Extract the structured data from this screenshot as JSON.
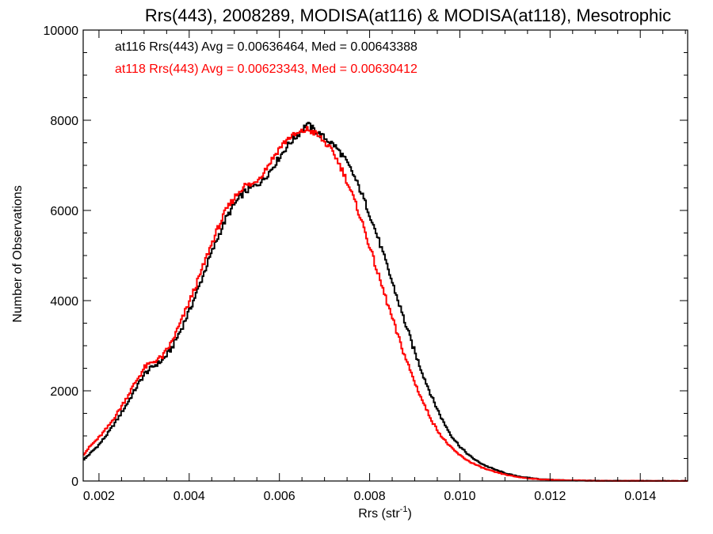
{
  "chart_data": {
    "type": "line",
    "step": true,
    "title": "Rrs(443), 2008289, MODISA(at116) & MODISA(at118), Mesotrophic",
    "xlabel_main": "Rrs (str",
    "xlabel_sup": "-1",
    "xlabel_close": ")",
    "ylabel": "Number of Observations",
    "xlim": [
      0.00165,
      0.01505
    ],
    "ylim": [
      0,
      10000
    ],
    "xticks": [
      "0.002",
      "0.004",
      "0.006",
      "0.008",
      "0.010",
      "0.012",
      "0.014"
    ],
    "xtick_values": [
      0.002,
      0.004,
      0.006,
      0.008,
      0.01,
      0.012,
      0.014
    ],
    "yticks": [
      "0",
      "2000",
      "4000",
      "6000",
      "8000",
      "10000"
    ],
    "ytick_values": [
      0,
      2000,
      4000,
      6000,
      8000,
      10000
    ],
    "series": [
      {
        "name": "at116",
        "color": "#000000",
        "legend": "at116 Rrs(443) Avg = 0.00636464, Med = 0.00643388",
        "points": [
          [
            0.00165,
            480
          ],
          [
            0.0018,
            620
          ],
          [
            0.002,
            820
          ],
          [
            0.0022,
            1080
          ],
          [
            0.0024,
            1380
          ],
          [
            0.0026,
            1700
          ],
          [
            0.0028,
            2050
          ],
          [
            0.003,
            2380
          ],
          [
            0.0032,
            2550
          ],
          [
            0.0034,
            2680
          ],
          [
            0.0036,
            2950
          ],
          [
            0.0038,
            3350
          ],
          [
            0.004,
            3800
          ],
          [
            0.0042,
            4300
          ],
          [
            0.0044,
            4850
          ],
          [
            0.0046,
            5350
          ],
          [
            0.0048,
            5820
          ],
          [
            0.005,
            6150
          ],
          [
            0.0052,
            6400
          ],
          [
            0.0054,
            6520
          ],
          [
            0.0056,
            6650
          ],
          [
            0.0058,
            6900
          ],
          [
            0.006,
            7200
          ],
          [
            0.0062,
            7480
          ],
          [
            0.0064,
            7680
          ],
          [
            0.0066,
            7920
          ],
          [
            0.0068,
            7750
          ],
          [
            0.007,
            7600
          ],
          [
            0.0072,
            7450
          ],
          [
            0.0074,
            7200
          ],
          [
            0.0076,
            6850
          ],
          [
            0.0078,
            6400
          ],
          [
            0.008,
            5880
          ],
          [
            0.0082,
            5300
          ],
          [
            0.0084,
            4680
          ],
          [
            0.0086,
            4050
          ],
          [
            0.0088,
            3420
          ],
          [
            0.009,
            2820
          ],
          [
            0.0092,
            2280
          ],
          [
            0.0094,
            1780
          ],
          [
            0.0096,
            1350
          ],
          [
            0.0098,
            1000
          ],
          [
            0.01,
            750
          ],
          [
            0.0102,
            560
          ],
          [
            0.0104,
            420
          ],
          [
            0.0106,
            320
          ],
          [
            0.0108,
            240
          ],
          [
            0.011,
            170
          ],
          [
            0.0112,
            120
          ],
          [
            0.0114,
            85
          ],
          [
            0.0116,
            60
          ],
          [
            0.0118,
            40
          ],
          [
            0.012,
            28
          ],
          [
            0.0124,
            15
          ],
          [
            0.0128,
            8
          ],
          [
            0.0134,
            4
          ],
          [
            0.014,
            2
          ],
          [
            0.01505,
            0
          ]
        ]
      },
      {
        "name": "at118",
        "color": "#ff0000",
        "legend": "at118 Rrs(443) Avg = 0.00623343, Med = 0.00630412",
        "points": [
          [
            0.00165,
            600
          ],
          [
            0.0018,
            780
          ],
          [
            0.002,
            980
          ],
          [
            0.0022,
            1220
          ],
          [
            0.0024,
            1520
          ],
          [
            0.0026,
            1850
          ],
          [
            0.0028,
            2200
          ],
          [
            0.003,
            2520
          ],
          [
            0.0032,
            2650
          ],
          [
            0.0034,
            2760
          ],
          [
            0.0036,
            3080
          ],
          [
            0.0038,
            3520
          ],
          [
            0.004,
            4000
          ],
          [
            0.0042,
            4500
          ],
          [
            0.0044,
            5050
          ],
          [
            0.0046,
            5550
          ],
          [
            0.0048,
            6000
          ],
          [
            0.005,
            6300
          ],
          [
            0.0052,
            6550
          ],
          [
            0.0054,
            6580
          ],
          [
            0.0056,
            6800
          ],
          [
            0.0058,
            7100
          ],
          [
            0.006,
            7400
          ],
          [
            0.0062,
            7620
          ],
          [
            0.0064,
            7700
          ],
          [
            0.0066,
            7800
          ],
          [
            0.0068,
            7700
          ],
          [
            0.007,
            7500
          ],
          [
            0.0072,
            7250
          ],
          [
            0.0074,
            6850
          ],
          [
            0.0076,
            6350
          ],
          [
            0.0078,
            5800
          ],
          [
            0.008,
            5150
          ],
          [
            0.0082,
            4500
          ],
          [
            0.0084,
            3880
          ],
          [
            0.0086,
            3250
          ],
          [
            0.0088,
            2680
          ],
          [
            0.009,
            2150
          ],
          [
            0.0092,
            1680
          ],
          [
            0.0094,
            1270
          ],
          [
            0.0096,
            960
          ],
          [
            0.0098,
            730
          ],
          [
            0.01,
            560
          ],
          [
            0.0102,
            430
          ],
          [
            0.0104,
            330
          ],
          [
            0.0106,
            250
          ],
          [
            0.0108,
            190
          ],
          [
            0.011,
            140
          ],
          [
            0.0112,
            100
          ],
          [
            0.0114,
            70
          ],
          [
            0.0116,
            50
          ],
          [
            0.0118,
            35
          ],
          [
            0.012,
            25
          ],
          [
            0.0124,
            13
          ],
          [
            0.0128,
            7
          ],
          [
            0.0134,
            3
          ],
          [
            0.014,
            2
          ],
          [
            0.01505,
            0
          ]
        ]
      }
    ]
  }
}
